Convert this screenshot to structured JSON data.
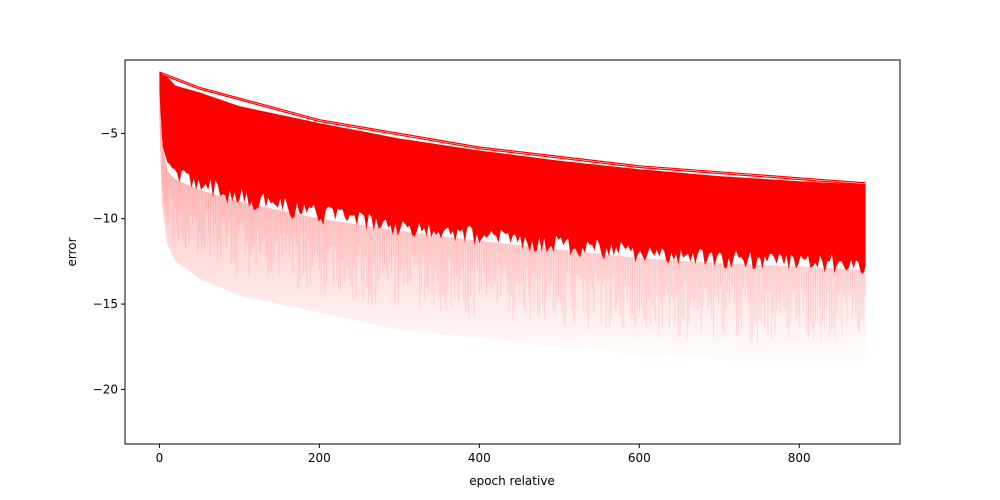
{
  "chart_data": {
    "type": "line",
    "title": "",
    "xlabel": "epoch relative",
    "ylabel": "error",
    "xlim": [
      -43,
      926
    ],
    "ylim": [
      -23.2,
      -0.7
    ],
    "xticks": [
      0,
      200,
      400,
      600,
      800
    ],
    "xtick_labels": [
      "0",
      "200",
      "400",
      "600",
      "800"
    ],
    "yticks": [
      -5,
      -10,
      -15,
      -20
    ],
    "ytick_labels": [
      "−5",
      "−10",
      "−15",
      "−20"
    ],
    "grid": false,
    "legend": "none",
    "series_color": "#ff0000",
    "x_max": 883,
    "envelope": {
      "x": [
        0,
        3,
        10,
        20,
        50,
        100,
        200,
        300,
        400,
        500,
        600,
        700,
        800,
        883
      ],
      "upper": [
        -1.4,
        -1.5,
        -1.7,
        -2.2,
        -2.6,
        -3.4,
        -4.4,
        -5.3,
        -6.0,
        -6.6,
        -7.1,
        -7.5,
        -7.8,
        -8.0
      ],
      "solid_lower": [
        -2.5,
        -5.5,
        -7.2,
        -7.7,
        -8.3,
        -9.0,
        -10.0,
        -10.7,
        -11.3,
        -11.8,
        -12.3,
        -12.6,
        -12.8,
        -13.0
      ],
      "faint_lower": [
        -4.0,
        -9.0,
        -11.5,
        -12.5,
        -13.5,
        -14.5,
        -15.5,
        -16.5,
        -17.0,
        -17.5,
        -18.0,
        -18.3,
        -18.6,
        -18.8
      ]
    },
    "outlier_lines": [
      {
        "x": [
          0,
          50,
          200,
          400,
          600,
          800,
          883
        ],
        "y": [
          -1.4,
          -2.3,
          -4.2,
          -5.8,
          -6.9,
          -7.6,
          -7.9
        ]
      },
      {
        "x": [
          0,
          50,
          200,
          400,
          600,
          800,
          883
        ],
        "y": [
          -1.5,
          -2.4,
          -4.3,
          -5.9,
          -7.0,
          -7.7,
          -8.0
        ]
      }
    ]
  }
}
